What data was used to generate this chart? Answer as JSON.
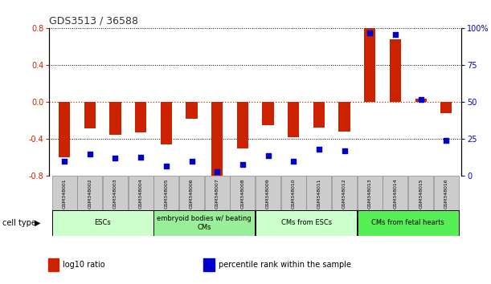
{
  "title": "GDS3513 / 36588",
  "samples": [
    "GSM348001",
    "GSM348002",
    "GSM348003",
    "GSM348004",
    "GSM348005",
    "GSM348006",
    "GSM348007",
    "GSM348008",
    "GSM348009",
    "GSM348010",
    "GSM348011",
    "GSM348012",
    "GSM348013",
    "GSM348014",
    "GSM348015",
    "GSM348016"
  ],
  "log10_ratio": [
    -0.6,
    -0.28,
    -0.35,
    -0.33,
    -0.46,
    -0.18,
    -0.8,
    -0.5,
    -0.25,
    -0.38,
    -0.27,
    -0.32,
    0.8,
    0.68,
    0.04,
    -0.12
  ],
  "percentile_rank": [
    10,
    15,
    12,
    13,
    7,
    10,
    3,
    8,
    14,
    10,
    18,
    17,
    97,
    96,
    52,
    24
  ],
  "ylim_left": [
    -0.8,
    0.8
  ],
  "ylim_right": [
    0,
    100
  ],
  "yticks_left": [
    -0.8,
    -0.4,
    0.0,
    0.4,
    0.8
  ],
  "yticks_right": [
    0,
    25,
    50,
    75,
    100
  ],
  "ytick_labels_right": [
    "0",
    "25",
    "50",
    "75",
    "100%"
  ],
  "bar_color": "#cc2200",
  "dot_color": "#0000cc",
  "zero_line_color": "#cc2200",
  "hline_color": "#000000",
  "cell_type_groups": [
    {
      "label": "ESCs",
      "start": 0,
      "end": 3,
      "color": "#ccffcc"
    },
    {
      "label": "embryoid bodies w/ beating\nCMs",
      "start": 4,
      "end": 7,
      "color": "#99ee99"
    },
    {
      "label": "CMs from ESCs",
      "start": 8,
      "end": 11,
      "color": "#ccffcc"
    },
    {
      "label": "CMs from fetal hearts",
      "start": 12,
      "end": 15,
      "color": "#55ee55"
    }
  ],
  "legend_items": [
    {
      "color": "#cc2200",
      "label": "log10 ratio"
    },
    {
      "color": "#0000cc",
      "label": "percentile rank within the sample"
    }
  ],
  "cell_type_label": "cell type",
  "background_color": "#ffffff",
  "sample_box_color": "#cccccc",
  "tick_fontsize": 7,
  "label_fontsize": 7
}
